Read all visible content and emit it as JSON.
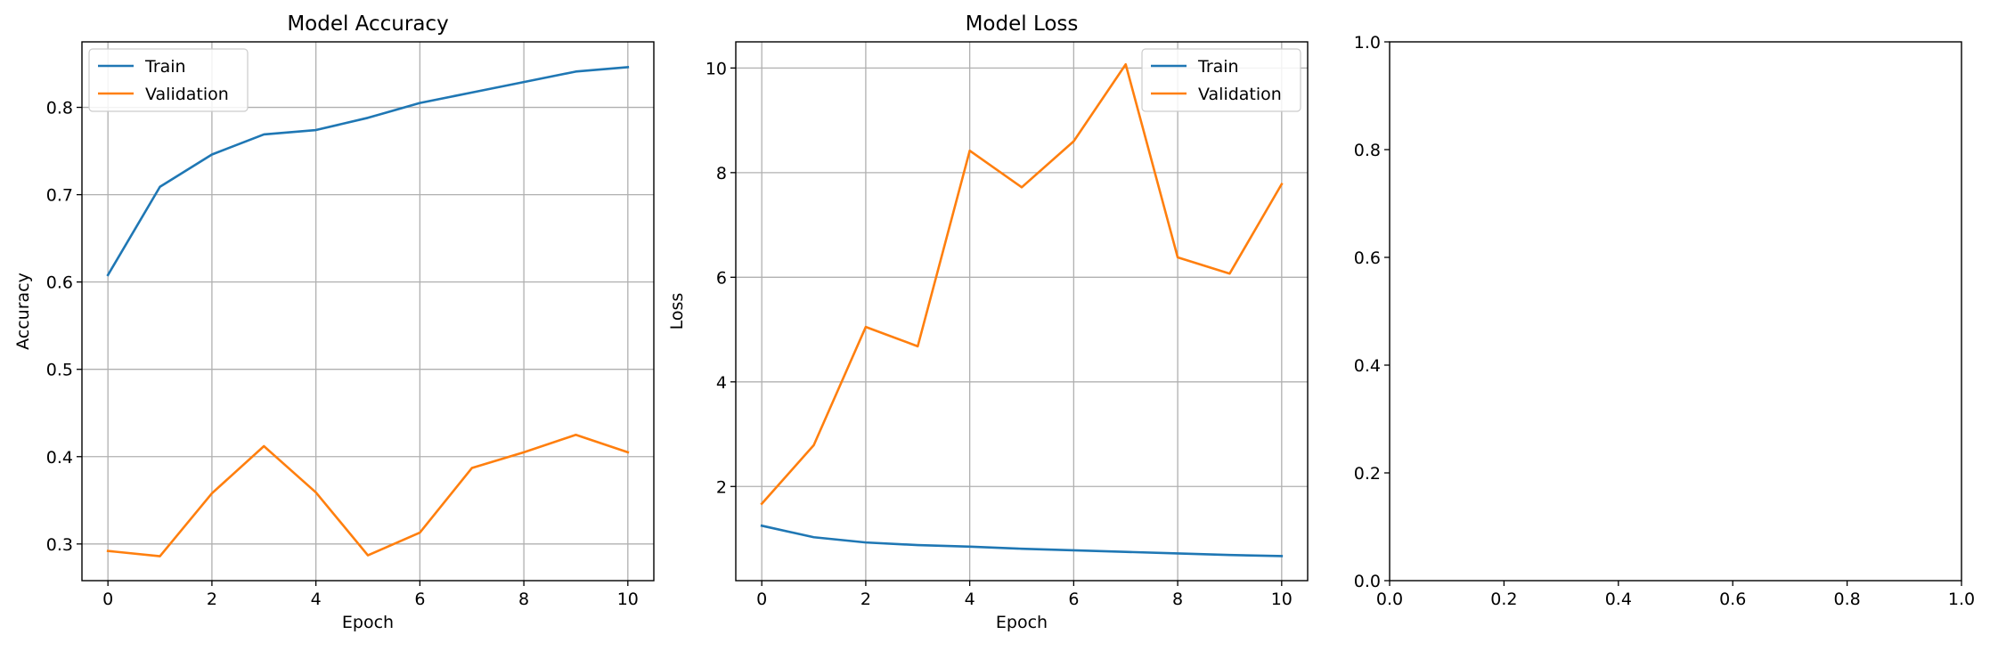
{
  "colors": {
    "train": "#1f77b4",
    "validation": "#ff7f0e",
    "grid": "#b0b0b0",
    "axes": "#000000"
  },
  "chart_data": [
    {
      "type": "line",
      "title": "Model Accuracy",
      "xlabel": "Epoch",
      "ylabel": "Accuracy",
      "x": [
        0,
        1,
        2,
        3,
        4,
        5,
        6,
        7,
        8,
        9,
        10
      ],
      "xlim": [
        -0.5,
        10.5
      ],
      "ylim": [
        0.258,
        0.875
      ],
      "xticks": [
        0,
        2,
        4,
        6,
        8,
        10
      ],
      "xtick_labels": [
        "0",
        "2",
        "4",
        "6",
        "8",
        "10"
      ],
      "yticks": [
        0.3,
        0.4,
        0.5,
        0.6,
        0.7,
        0.8
      ],
      "ytick_labels": [
        "0.3",
        "0.4",
        "0.5",
        "0.6",
        "0.7",
        "0.8"
      ],
      "grid": true,
      "legend": "upper-left",
      "series": [
        {
          "name": "Train",
          "color": "#1f77b4",
          "values": [
            0.608,
            0.709,
            0.746,
            0.769,
            0.774,
            0.788,
            0.805,
            0.817,
            0.829,
            0.841,
            0.846
          ]
        },
        {
          "name": "Validation",
          "color": "#ff7f0e",
          "values": [
            0.292,
            0.286,
            0.358,
            0.412,
            0.359,
            0.287,
            0.313,
            0.387,
            0.405,
            0.425,
            0.405
          ]
        }
      ]
    },
    {
      "type": "line",
      "title": "Model Loss",
      "xlabel": "Epoch",
      "ylabel": "Loss",
      "x": [
        0,
        1,
        2,
        3,
        4,
        5,
        6,
        7,
        8,
        9,
        10
      ],
      "xlim": [
        -0.5,
        10.5
      ],
      "ylim": [
        0.2,
        10.5
      ],
      "xticks": [
        0,
        2,
        4,
        6,
        8,
        10
      ],
      "xtick_labels": [
        "0",
        "2",
        "4",
        "6",
        "8",
        "10"
      ],
      "yticks": [
        2,
        4,
        6,
        8,
        10
      ],
      "ytick_labels": [
        "2",
        "4",
        "6",
        "8",
        "10"
      ],
      "grid": true,
      "legend": "upper-right",
      "series": [
        {
          "name": "Train",
          "color": "#1f77b4",
          "values": [
            1.25,
            1.03,
            0.93,
            0.88,
            0.85,
            0.81,
            0.78,
            0.75,
            0.72,
            0.69,
            0.67
          ]
        },
        {
          "name": "Validation",
          "color": "#ff7f0e",
          "values": [
            1.67,
            2.79,
            5.05,
            4.68,
            8.42,
            7.72,
            8.6,
            10.07,
            6.38,
            6.07,
            7.78
          ]
        }
      ]
    },
    {
      "type": "line",
      "title": "",
      "xlabel": "",
      "ylabel": "",
      "xlim": [
        0,
        1
      ],
      "ylim": [
        0,
        1
      ],
      "xticks": [
        0.0,
        0.2,
        0.4,
        0.6,
        0.8,
        1.0
      ],
      "xtick_labels": [
        "0.0",
        "0.2",
        "0.4",
        "0.6",
        "0.8",
        "1.0"
      ],
      "yticks": [
        0.0,
        0.2,
        0.4,
        0.6,
        0.8,
        1.0
      ],
      "ytick_labels": [
        "0.0",
        "0.2",
        "0.4",
        "0.6",
        "0.8",
        "1.0"
      ],
      "grid": false,
      "legend": "none",
      "series": []
    }
  ]
}
